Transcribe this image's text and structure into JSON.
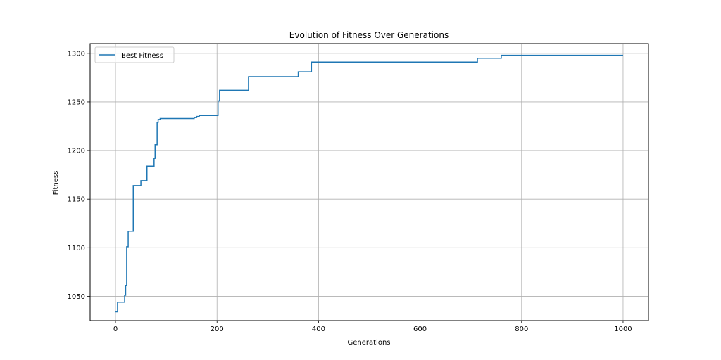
{
  "chart_data": {
    "type": "line",
    "title": "Evolution of Fitness Over Generations",
    "xlabel": "Generations",
    "ylabel": "Fitness",
    "xlim": [
      -50,
      1050
    ],
    "ylim": [
      1025,
      1310
    ],
    "xticks": [
      0,
      200,
      400,
      600,
      800,
      1000
    ],
    "yticks": [
      1050,
      1100,
      1150,
      1200,
      1250,
      1300
    ],
    "grid": true,
    "legend_position": "top-left",
    "series": [
      {
        "name": "Best Fitness",
        "color": "#1f77b4",
        "step": true,
        "x": [
          0,
          4,
          15,
          18,
          19,
          20,
          22,
          25,
          32,
          35,
          43,
          50,
          57,
          62,
          72,
          76,
          78,
          82,
          84,
          88,
          115,
          150,
          155,
          160,
          165,
          200,
          202,
          205,
          207,
          240,
          262,
          300,
          350,
          360,
          385,
          386,
          400,
          500,
          600,
          700,
          713,
          740,
          760,
          800,
          900,
          1000
        ],
        "y": [
          1034,
          1044,
          1044,
          1051,
          1051,
          1061,
          1101,
          1117,
          1117,
          1164,
          1164,
          1169,
          1169,
          1184,
          1184,
          1192,
          1206,
          1229,
          1232,
          1233,
          1233,
          1233,
          1234,
          1235,
          1236,
          1236,
          1251,
          1262,
          1262,
          1262,
          1276,
          1276,
          1276,
          1281,
          1281,
          1291,
          1291,
          1291,
          1291,
          1291,
          1295,
          1295,
          1298,
          1298,
          1298,
          1298
        ]
      }
    ]
  }
}
